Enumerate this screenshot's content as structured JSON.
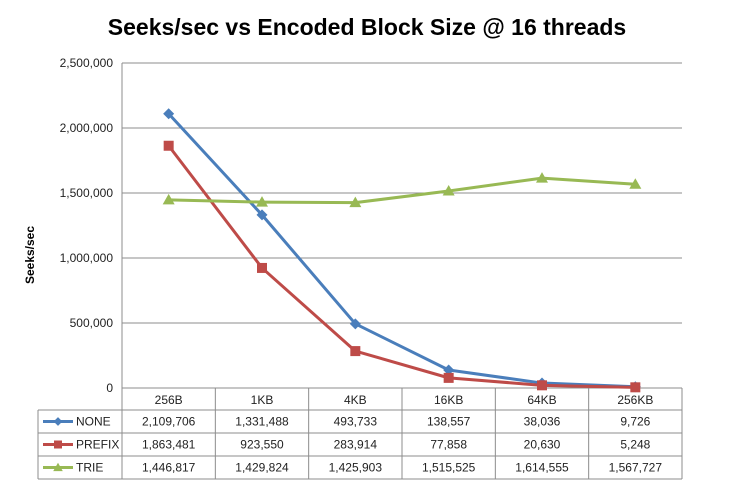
{
  "chart_data": {
    "type": "line",
    "title": "Seeks/sec vs Encoded Block Size @ 16 threads",
    "xlabel": "",
    "ylabel": "Seeks/sec",
    "categories": [
      "256B",
      "1KB",
      "4KB",
      "16KB",
      "64KB",
      "256KB"
    ],
    "ylim": [
      0,
      2500000
    ],
    "yticks": [
      "2,500,000",
      "2,000,000",
      "1,500,000",
      "1,000,000",
      "500,000",
      "0"
    ],
    "ytick_values": [
      2500000,
      2000000,
      1500000,
      1000000,
      500000,
      0
    ],
    "grid": true,
    "legend": "data-table",
    "series": [
      {
        "name": "NONE",
        "color": "#4a7ebb",
        "marker": "diamond",
        "values": [
          2109706,
          1331488,
          493733,
          138557,
          38036,
          9726
        ],
        "labels": [
          "2,109,706",
          "1,331,488",
          "493,733",
          "138,557",
          "38,036",
          "9,726"
        ]
      },
      {
        "name": "PREFIX",
        "color": "#be4b48",
        "marker": "square",
        "values": [
          1863481,
          923550,
          283914,
          77858,
          20630,
          5248
        ],
        "labels": [
          "1,863,481",
          "923,550",
          "283,914",
          "77,858",
          "20,630",
          "5,248"
        ]
      },
      {
        "name": "TRIE",
        "color": "#98b954",
        "marker": "triangle",
        "values": [
          1446817,
          1429824,
          1425903,
          1515525,
          1614555,
          1567727
        ],
        "labels": [
          "1,446,817",
          "1,429,824",
          "1,425,903",
          "1,515,525",
          "1,614,555",
          "1,567,727"
        ]
      }
    ]
  }
}
